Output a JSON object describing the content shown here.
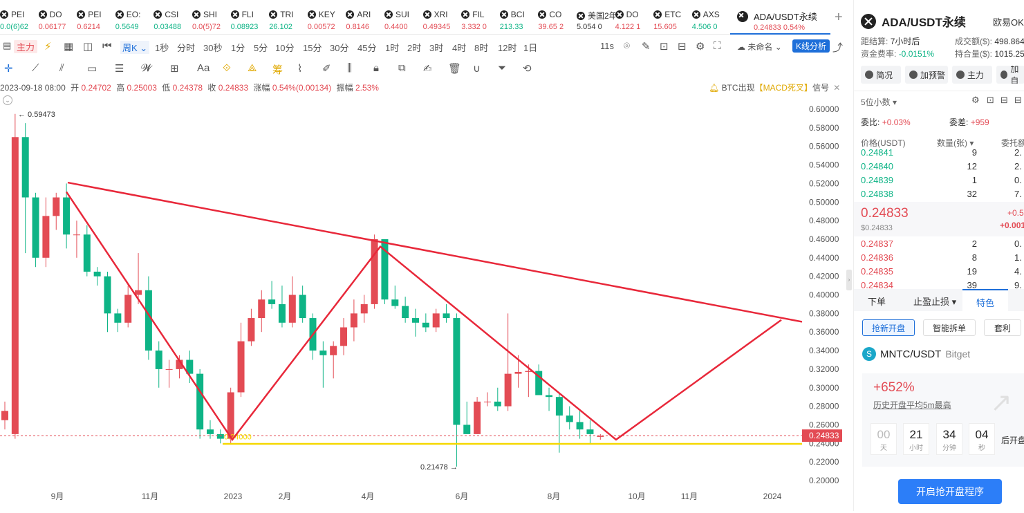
{
  "tickers": [
    {
      "name": "PEI",
      "price": "0.0(6)62",
      "color": "#0eb486"
    },
    {
      "name": "DO",
      "price": "0.06177",
      "color": "#e34b54"
    },
    {
      "name": "PEI",
      "price": "0.6214",
      "color": "#e34b54"
    },
    {
      "name": "EO:",
      "price": "0.5649",
      "color": "#0eb486"
    },
    {
      "name": "CSI",
      "price": "0.03488",
      "color": "#0eb486"
    },
    {
      "name": "SHI",
      "price": "0.0(5)72",
      "color": "#e34b54"
    },
    {
      "name": "FLI",
      "price": "0.08923",
      "color": "#0eb486"
    },
    {
      "name": "TRI",
      "price": "26.102",
      "color": "#0eb486"
    },
    {
      "name": "KEY",
      "price": "0.00572",
      "color": "#e34b54"
    },
    {
      "name": "ARI",
      "price": "0.8146",
      "color": "#e34b54"
    },
    {
      "name": "SUI",
      "price": "0.4400",
      "color": "#e34b54"
    },
    {
      "name": "XRI",
      "price": "0.49345",
      "color": "#e34b54"
    },
    {
      "name": "FIL",
      "price": "3.332 0",
      "color": "#e34b54"
    },
    {
      "name": "BCI",
      "price": "213.33",
      "color": "#0eb486"
    },
    {
      "name": "CO",
      "price": "39.65 2",
      "color": "#e34b54"
    },
    {
      "name": "美国2年",
      "price": "5.054 0",
      "color": "#333333"
    },
    {
      "name": "DO",
      "price": "4.122 1",
      "color": "#e34b54"
    },
    {
      "name": "ETC",
      "price": "15.605",
      "color": "#e34b54"
    },
    {
      "name": "AXS",
      "price": "4.506 0",
      "color": "#0eb486"
    }
  ],
  "active_tab": {
    "name": "ADA/USDT永续",
    "price": "0.24833  0.54%"
  },
  "toolbar": {
    "main_label": "主力",
    "interval": "周K",
    "intervals": [
      "1秒",
      "分时",
      "30秒",
      "1分",
      "5分",
      "10分",
      "15分",
      "30分",
      "45分",
      "1时",
      "2时",
      "3时",
      "4时",
      "8时",
      "12时",
      "1日"
    ],
    "timer": "11s",
    "layout_name": "未命名",
    "kline_btn": "K线分析"
  },
  "draw_tools": {
    "text_tool": "Aa"
  },
  "info_bar": {
    "date": "2023-09-18 08:00",
    "open_label": "开",
    "open": "0.24702",
    "high_label": "高",
    "high": "0.25003",
    "low_label": "低",
    "low": "0.24378",
    "close_label": "收",
    "close": "0.24833",
    "change_label": "涨幅",
    "change": "0.54%(0.00134)",
    "amp_label": "振幅",
    "amp": "2.53%"
  },
  "alert": {
    "prefix": "BTC出现",
    "tag": "【MACD死叉】",
    "suffix": "信号"
  },
  "chart_data": {
    "type": "candlestick",
    "pair": "ADA/USDT",
    "interval": "weekly",
    "ylim": [
      0.19,
      0.61
    ],
    "y_ticks": [
      "0.60000",
      "0.58000",
      "0.56000",
      "0.54000",
      "0.52000",
      "0.50000",
      "0.48000",
      "0.46000",
      "0.44000",
      "0.42000",
      "0.40000",
      "0.38000",
      "0.36000",
      "0.34000",
      "0.32000",
      "0.30000",
      "0.28000",
      "0.26000",
      "0.24000",
      "0.22000",
      "0.20000"
    ],
    "x_ticks": [
      "9月",
      "11月",
      "2023",
      "2月",
      "4月",
      "6月",
      "8月",
      "10月",
      "11月",
      "2024"
    ],
    "candles": [
      [
        0.265,
        0.285,
        0.255,
        0.275
      ],
      [
        0.25,
        0.595,
        0.245,
        0.57
      ],
      [
        0.57,
        0.585,
        0.445,
        0.505
      ],
      [
        0.505,
        0.51,
        0.43,
        0.44
      ],
      [
        0.44,
        0.505,
        0.43,
        0.485
      ],
      [
        0.485,
        0.51,
        0.47,
        0.505
      ],
      [
        0.505,
        0.52,
        0.45,
        0.465
      ],
      [
        0.465,
        0.48,
        0.44,
        0.465
      ],
      [
        0.465,
        0.475,
        0.42,
        0.425
      ],
      [
        0.425,
        0.43,
        0.41,
        0.42
      ],
      [
        0.42,
        0.425,
        0.36,
        0.38
      ],
      [
        0.38,
        0.385,
        0.36,
        0.37
      ],
      [
        0.37,
        0.41,
        0.365,
        0.4
      ],
      [
        0.4,
        0.445,
        0.39,
        0.405
      ],
      [
        0.405,
        0.42,
        0.33,
        0.34
      ],
      [
        0.34,
        0.35,
        0.3,
        0.32
      ],
      [
        0.32,
        0.33,
        0.3,
        0.32
      ],
      [
        0.32,
        0.335,
        0.31,
        0.33
      ],
      [
        0.33,
        0.34,
        0.305,
        0.315
      ],
      [
        0.315,
        0.32,
        0.245,
        0.255
      ],
      [
        0.255,
        0.265,
        0.245,
        0.25
      ],
      [
        0.25,
        0.255,
        0.24,
        0.245
      ],
      [
        0.245,
        0.3,
        0.24,
        0.295
      ],
      [
        0.295,
        0.37,
        0.29,
        0.35
      ],
      [
        0.35,
        0.385,
        0.345,
        0.375
      ],
      [
        0.375,
        0.405,
        0.36,
        0.395
      ],
      [
        0.395,
        0.415,
        0.385,
        0.39
      ],
      [
        0.39,
        0.41,
        0.365,
        0.37
      ],
      [
        0.37,
        0.42,
        0.365,
        0.4
      ],
      [
        0.4,
        0.41,
        0.37,
        0.375
      ],
      [
        0.375,
        0.38,
        0.33,
        0.34
      ],
      [
        0.34,
        0.35,
        0.3,
        0.335
      ],
      [
        0.335,
        0.35,
        0.31,
        0.345
      ],
      [
        0.345,
        0.375,
        0.335,
        0.365
      ],
      [
        0.365,
        0.395,
        0.35,
        0.38
      ],
      [
        0.38,
        0.4,
        0.37,
        0.39
      ],
      [
        0.39,
        0.465,
        0.385,
        0.46
      ],
      [
        0.46,
        0.46,
        0.39,
        0.395
      ],
      [
        0.395,
        0.41,
        0.385,
        0.388
      ],
      [
        0.388,
        0.398,
        0.37,
        0.375
      ],
      [
        0.375,
        0.385,
        0.355,
        0.37
      ],
      [
        0.37,
        0.38,
        0.36,
        0.365
      ],
      [
        0.365,
        0.385,
        0.36,
        0.38
      ],
      [
        0.38,
        0.39,
        0.37,
        0.375
      ],
      [
        0.375,
        0.38,
        0.215,
        0.26
      ],
      [
        0.26,
        0.285,
        0.25,
        0.25
      ],
      [
        0.25,
        0.29,
        0.25,
        0.285
      ],
      [
        0.285,
        0.295,
        0.28,
        0.285
      ],
      [
        0.285,
        0.3,
        0.275,
        0.28
      ],
      [
        0.28,
        0.38,
        0.275,
        0.315
      ],
      [
        0.315,
        0.335,
        0.3,
        0.317
      ],
      [
        0.317,
        0.325,
        0.29,
        0.318
      ],
      [
        0.318,
        0.325,
        0.295,
        0.292
      ],
      [
        0.292,
        0.3,
        0.275,
        0.29
      ],
      [
        0.29,
        0.295,
        0.23,
        0.27
      ],
      [
        0.27,
        0.28,
        0.255,
        0.263
      ],
      [
        0.263,
        0.275,
        0.245,
        0.255
      ],
      [
        0.255,
        0.265,
        0.24,
        0.25
      ],
      [
        0.247,
        0.25,
        0.244,
        0.248
      ]
    ],
    "label_high": "← 0.59473",
    "label_low": "0.21478 →",
    "label_yellow": "0.24000",
    "last_price": "0.24833",
    "colors": {
      "up": "#e34b54",
      "down": "#0eb486",
      "pattern": "#e8283a",
      "support": "#f5d800"
    }
  },
  "right": {
    "title": "ADA/USDT永续",
    "exchange": "欧易OK",
    "funding_label": "距结算:",
    "funding_value": "7小时后",
    "rate_label": "资金费率:",
    "rate_value": "-0.0151%",
    "vol_label": "成交额($):",
    "vol_value": "498.864",
    "oi_label": "持合量($):",
    "oi_value": "1015.25",
    "btns": [
      "简况",
      "加预警",
      "主力",
      "加自"
    ],
    "decimals": "5位小数",
    "wb_label": "委比:",
    "wb_value": "+0.03%",
    "wc_label": "委差:",
    "wc_value": "+959",
    "col_price": "价格(USDT)",
    "col_qty": "数量(张)",
    "col_total": "委托额",
    "asks": [
      [
        "0.24841",
        "9",
        "2."
      ],
      [
        "0.24840",
        "12",
        "2."
      ],
      [
        "0.24839",
        "1",
        "0."
      ],
      [
        "0.24838",
        "32",
        "7."
      ]
    ],
    "mid_price": "0.24833",
    "mid_usd": "$0.24833",
    "mid_chg1": "+0.5",
    "mid_chg2": "+0.001",
    "bids": [
      [
        "0.24837",
        "2",
        "0."
      ],
      [
        "0.24836",
        "8",
        "1."
      ],
      [
        "0.24835",
        "19",
        "4."
      ],
      [
        "0.24834",
        "39",
        "9."
      ]
    ],
    "tabs": [
      "下单",
      "止盈止损",
      "特色"
    ],
    "pills": [
      "抢新开盘",
      "智能拆单",
      "套利"
    ],
    "promo_pair": "MNTC/USDT",
    "promo_exchange": "Bitget",
    "promo_pct": "+652%",
    "promo_sub": "历史开盘平均5m最高",
    "countdown": [
      {
        "n": "00",
        "u": "天"
      },
      {
        "n": "21",
        "u": "小时"
      },
      {
        "n": "34",
        "u": "分钟"
      },
      {
        "n": "04",
        "u": "秒"
      }
    ],
    "after": "后开盘",
    "cta": "开启抢开盘程序"
  }
}
